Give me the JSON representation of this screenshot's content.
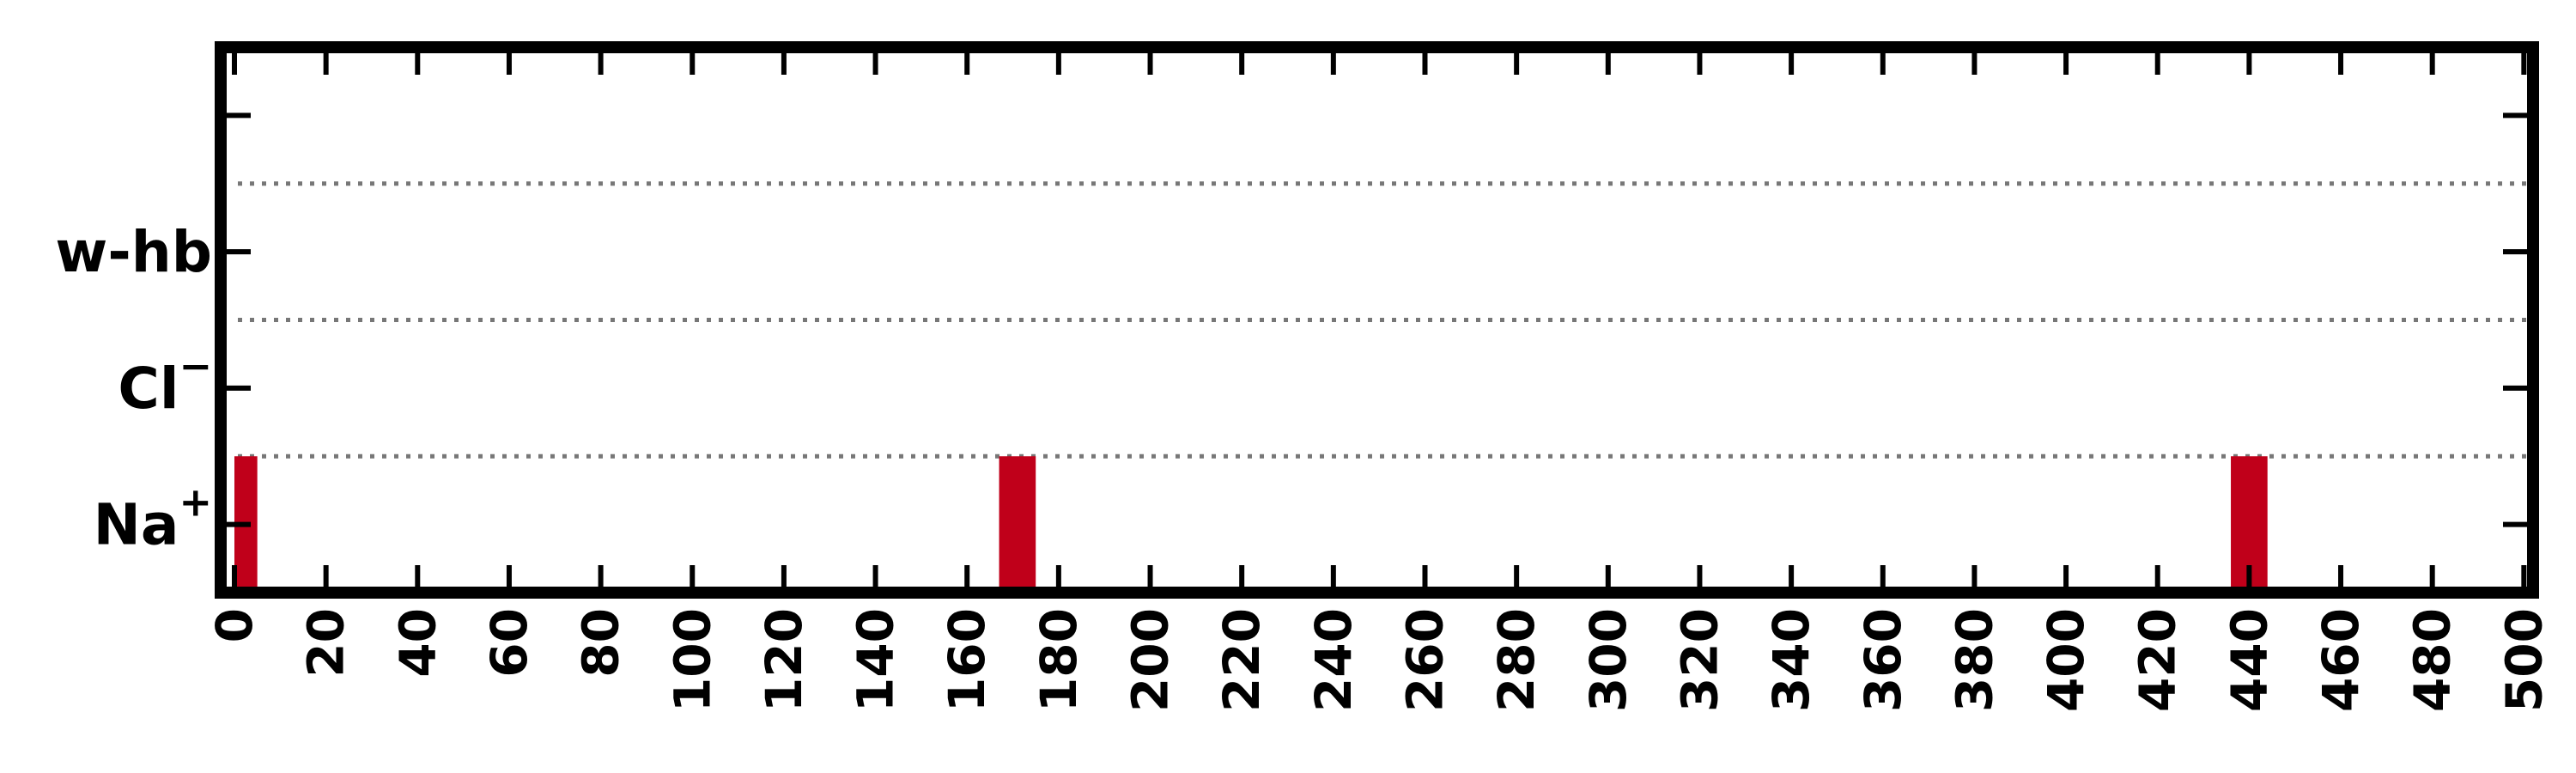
{
  "chart_data": {
    "type": "bar",
    "title": "",
    "xlabel": "",
    "ylabel": "",
    "xlim": [
      -3,
      502
    ],
    "x_ticks": [
      0,
      20,
      40,
      60,
      80,
      100,
      120,
      140,
      160,
      180,
      200,
      220,
      240,
      260,
      280,
      300,
      320,
      340,
      360,
      380,
      400,
      420,
      440,
      460,
      480,
      500
    ],
    "rows": [
      {
        "label": "Na",
        "superscript": "+"
      },
      {
        "label": "Cl",
        "superscript": "−"
      },
      {
        "label": "w-hb",
        "superscript": ""
      }
    ],
    "grid": "dotted row separators",
    "series": [
      {
        "row": "Na",
        "color": "#c0001a",
        "events": [
          [
            0,
            5
          ],
          [
            167,
            175
          ],
          [
            436,
            444
          ]
        ]
      },
      {
        "row": "Cl",
        "color": "#c0001a",
        "events": []
      },
      {
        "row": "w-hb",
        "color": "#c0001a",
        "events": []
      }
    ]
  }
}
